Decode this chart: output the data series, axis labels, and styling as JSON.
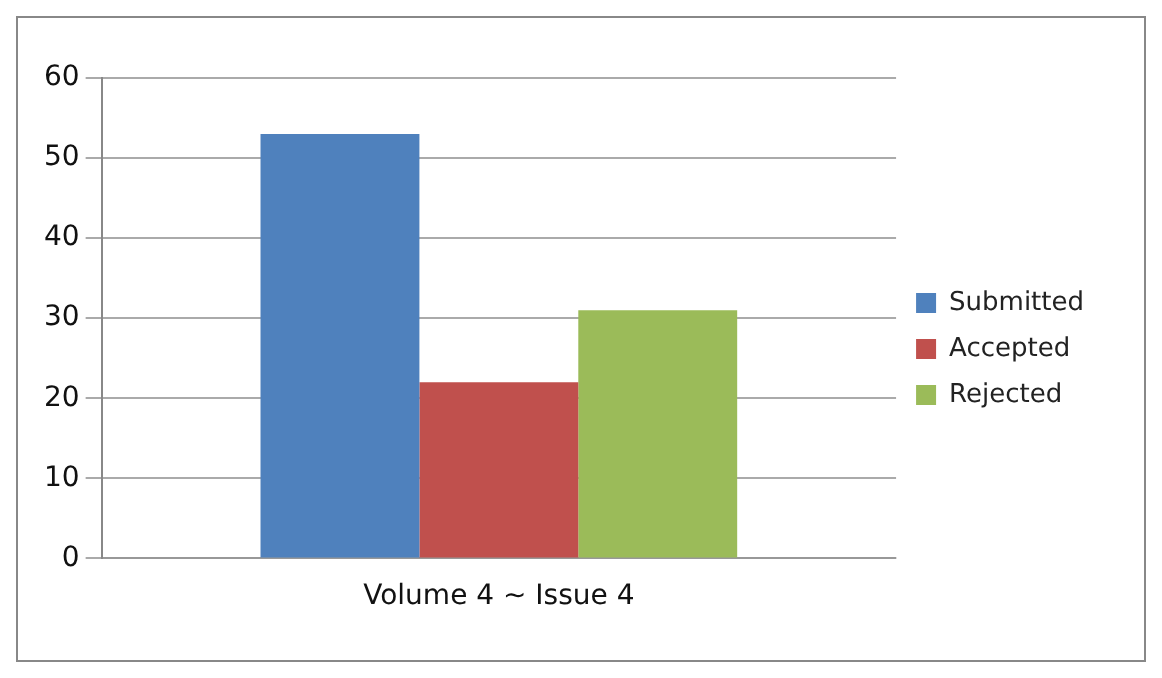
{
  "chart_data": {
    "type": "bar",
    "categories": [
      "Volume 4 ~ Issue 4"
    ],
    "series": [
      {
        "name": "Submitted",
        "color": "#4f81bd",
        "values": [
          53
        ]
      },
      {
        "name": "Accepted",
        "color": "#c0504d",
        "values": [
          22
        ]
      },
      {
        "name": "Rejected",
        "color": "#9bbb59",
        "values": [
          31
        ]
      }
    ],
    "ylim": [
      0,
      60
    ],
    "yticks": [
      0,
      10,
      20,
      30,
      40,
      50,
      60
    ],
    "grid": "y",
    "legend": "right"
  }
}
